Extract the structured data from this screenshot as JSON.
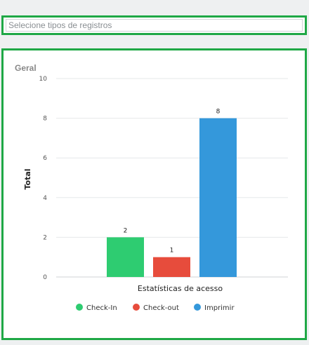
{
  "filter": {
    "placeholder": "Selecione tipos de registros"
  },
  "card": {
    "title": "Geral"
  },
  "chart_data": {
    "type": "bar",
    "title": "Geral",
    "xlabel": "Estatísticas de acesso",
    "ylabel": "Total",
    "ylim": [
      0,
      10
    ],
    "yticks": [
      0,
      2,
      4,
      6,
      8,
      10
    ],
    "grid": true,
    "legend_position": "bottom",
    "series": [
      {
        "name": "Check-In",
        "value": 2,
        "color": "#2ecc71"
      },
      {
        "name": "Check-out",
        "value": 1,
        "color": "#e74c3c"
      },
      {
        "name": "Imprimir",
        "value": 8,
        "color": "#3498db"
      }
    ]
  }
}
